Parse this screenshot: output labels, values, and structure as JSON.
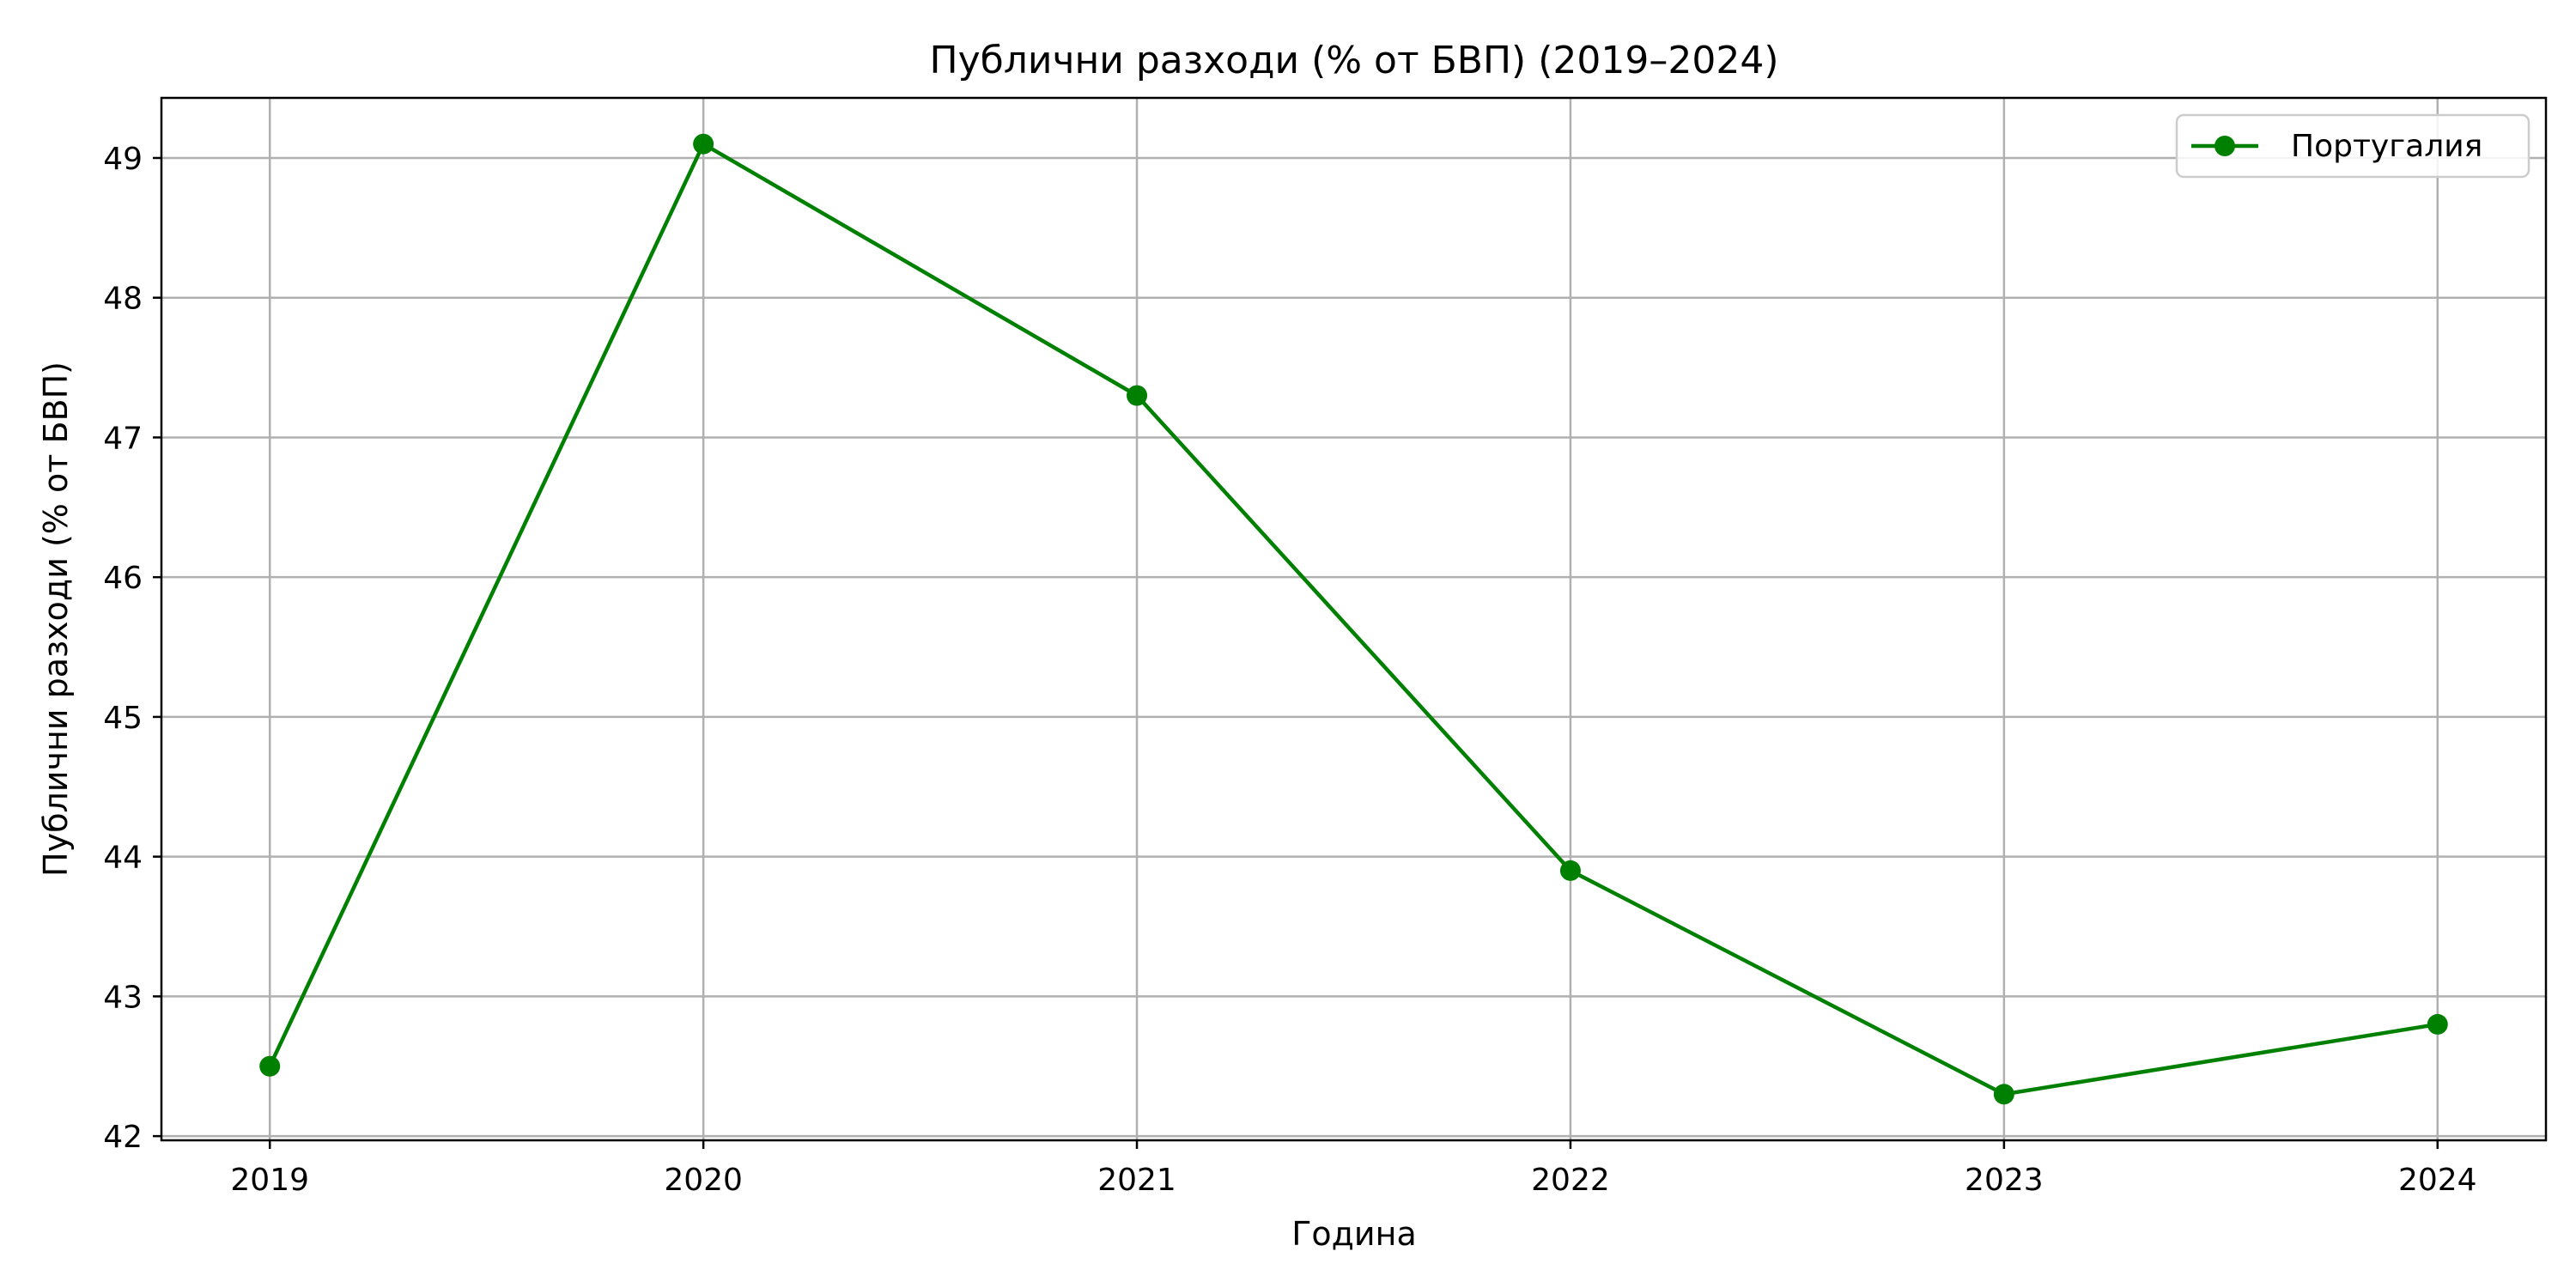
{
  "chart_data": {
    "type": "line",
    "title": "Публични разходи (% от БВП) (2019–2024)",
    "xlabel": "Година",
    "ylabel": "Публични разходи (% от БВП)",
    "x": [
      2019,
      2020,
      2021,
      2022,
      2023,
      2024
    ],
    "xticks": [
      "2019",
      "2020",
      "2021",
      "2022",
      "2023",
      "2024"
    ],
    "yticks": [
      42,
      43,
      44,
      45,
      46,
      47,
      48,
      49
    ],
    "xlim": [
      2018.75,
      2024.25
    ],
    "ylim": [
      41.97,
      49.43
    ],
    "grid": true,
    "legend_position": "top-right",
    "series": [
      {
        "name": "Португалия",
        "color": "#008000",
        "marker": "circle",
        "values": [
          42.5,
          49.1,
          47.3,
          43.9,
          42.3,
          42.8
        ]
      }
    ]
  }
}
